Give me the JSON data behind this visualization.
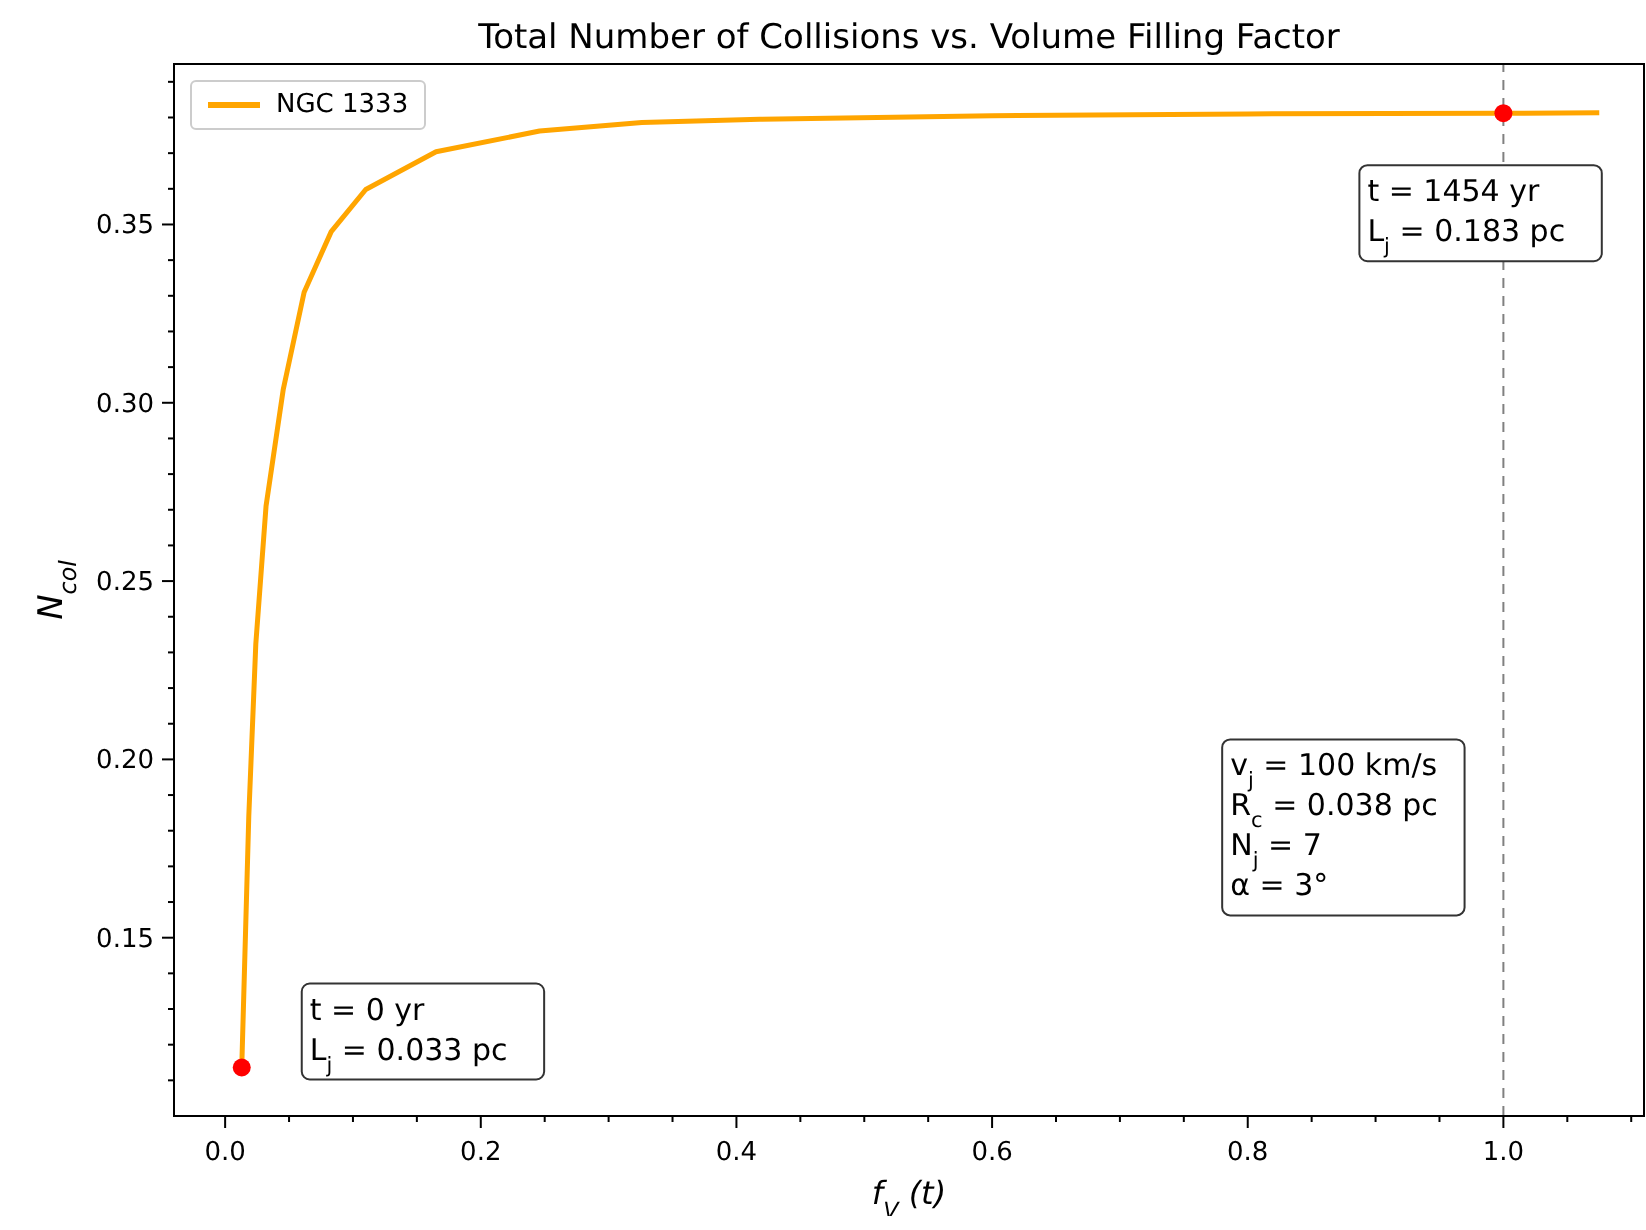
{
  "chart_data": {
    "type": "line",
    "title": "Total Number of Collisions vs. Volume Filling Factor",
    "xlabel": "f$_{V}$(t)",
    "ylabel": "N$_{col}$",
    "series": [
      {
        "name": "NGC 1333",
        "color": "#ffa500",
        "marker": "none",
        "x": [
          0.013,
          0.0185,
          0.024,
          0.032,
          0.0455,
          0.0618,
          0.083,
          0.11,
          0.165,
          0.246,
          0.326,
          0.418,
          0.6,
          0.8,
          1.0,
          1.075
        ],
        "values": [
          0.1136,
          0.184,
          0.2324,
          0.271,
          0.3038,
          0.331,
          0.348,
          0.3598,
          0.3704,
          0.3762,
          0.3786,
          0.3795,
          0.3805,
          0.381,
          0.3812,
          0.3813
        ]
      },
      {
        "type": "scatter",
        "color": "#ff0000",
        "marker": "circle",
        "x": [
          0.013,
          1.0
        ],
        "values": [
          0.1136,
          0.3812
        ]
      }
    ],
    "xlim": [
      -0.04,
      1.11
    ],
    "ylim": [
      0.1,
      0.395
    ],
    "xticks": [
      {
        "value": 0,
        "label": "0.0"
      },
      {
        "value": 0.05,
        "label": null
      },
      {
        "value": 0.1,
        "label": null
      },
      {
        "value": 0.15,
        "label": null
      },
      {
        "value": 0.2,
        "label": "0.2"
      },
      {
        "value": 0.25,
        "label": null
      },
      {
        "value": 0.3,
        "label": null
      },
      {
        "value": 0.35,
        "label": null
      },
      {
        "value": 0.4,
        "label": "0.4"
      },
      {
        "value": 0.45,
        "label": null
      },
      {
        "value": 0.5,
        "label": null
      },
      {
        "value": 0.55,
        "label": null
      },
      {
        "value": 0.6,
        "label": "0.6"
      },
      {
        "value": 0.65,
        "label": null
      },
      {
        "value": 0.7,
        "label": null
      },
      {
        "value": 0.75,
        "label": null
      },
      {
        "value": 0.8,
        "label": "0.8"
      },
      {
        "value": 0.85,
        "label": null
      },
      {
        "value": 0.9,
        "label": null
      },
      {
        "value": 0.95,
        "label": null
      },
      {
        "value": 1.0,
        "label": "1.0"
      },
      {
        "value": 1.05,
        "label": null
      },
      {
        "value": 1.1,
        "label": null
      }
    ],
    "yticks": [
      {
        "value": 0.11,
        "label": null
      },
      {
        "value": 0.12,
        "label": null
      },
      {
        "value": 0.13,
        "label": null
      },
      {
        "value": 0.14,
        "label": null
      },
      0.15,
      {
        "value": 0.16,
        "label": null
      },
      {
        "value": 0.17,
        "label": null
      },
      {
        "value": 0.18,
        "label": null
      },
      {
        "value": 0.19,
        "label": null
      },
      {
        "value": 0.2,
        "label": "0.20"
      },
      {
        "value": 0.21,
        "label": null
      },
      {
        "value": 0.22,
        "label": null
      },
      {
        "value": 0.23,
        "label": null
      },
      {
        "value": 0.24,
        "label": null
      },
      0.25,
      {
        "value": 0.26,
        "label": null
      },
      {
        "value": 0.27,
        "label": null
      },
      {
        "value": 0.28,
        "label": null
      },
      {
        "value": 0.29,
        "label": null
      },
      {
        "value": 0.3,
        "label": "0.30"
      },
      {
        "value": 0.31,
        "label": null
      },
      {
        "value": 0.32,
        "label": null
      },
      {
        "value": 0.33,
        "label": null
      },
      {
        "value": 0.34,
        "label": null
      },
      0.35,
      {
        "value": 0.36,
        "label": null
      },
      {
        "value": 0.37,
        "label": null
      },
      {
        "value": 0.38,
        "label": null
      },
      {
        "value": 0.39,
        "label": null
      }
    ],
    "ref_lines": [
      {
        "axis": "x",
        "value": 1.0,
        "label": null,
        "color": "#808080",
        "line_style": "dashed"
      }
    ],
    "annotations": [
      {
        "text": "t = 0 yr\nL$_{j}$ = 0.033 pc",
        "x": 0.013,
        "y": 0.1136
      },
      {
        "text": "t = 1454 yr\nL$_{j}$ = 0.183 pc",
        "x": 1.0,
        "y": 0.3812
      },
      "v$_{j}$ = 100 km/s\nR$_{c}$ = 0.038 pc\nN$_{j}$ = 7\nα = 3°"
    ],
    "grid": false,
    "legend": "top left"
  }
}
